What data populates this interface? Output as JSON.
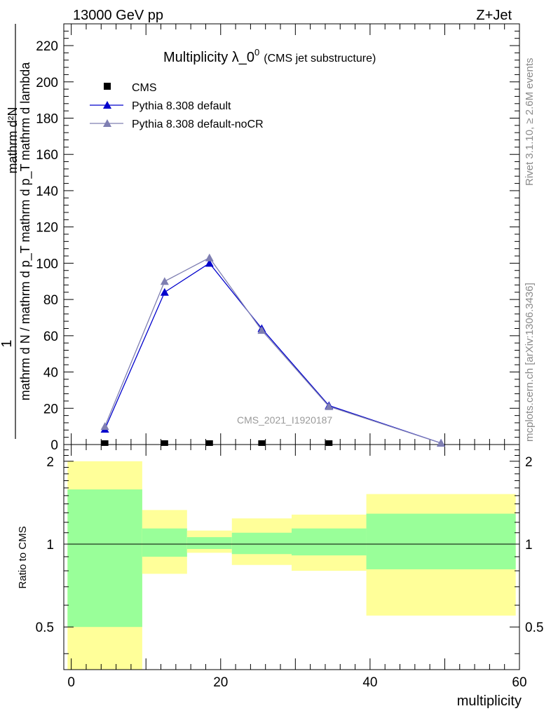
{
  "header": {
    "left": "13000 GeV pp",
    "right": "Z+Jet"
  },
  "side_labels": {
    "rivet": "Rivet 3.1.10, ≥ 2.6M events",
    "mcplots": "mcplots.cern.ch [arXiv:1306.3436]"
  },
  "watermark": "CMS_2021_I1920187",
  "chart_data": [
    {
      "type": "line",
      "panel": "main",
      "title_main": "Multiplicity λ_0",
      "title_sup": "0",
      "title_sub": "(CMS jet substructure)",
      "ylabel_numerator": "1",
      "ylabel_denominator": "mathrm d N / mathrm d p_T mathrm d p_T mathrm d lambda",
      "ylabel_fraction_top": "mathrm d²N",
      "xlim": [
        -1,
        60
      ],
      "ylim": [
        0,
        232
      ],
      "y_ticks": [
        0,
        20,
        40,
        60,
        80,
        100,
        120,
        140,
        160,
        180,
        200,
        220
      ],
      "legend_position": "top-left",
      "series": [
        {
          "name": "CMS",
          "marker": "square",
          "color": "#000000",
          "x": [
            4.5,
            12.5,
            18.5,
            25.5,
            34.5,
            49.5
          ],
          "y": [
            0.8,
            0.8,
            0.8,
            0.8,
            0.8,
            0.0
          ]
        },
        {
          "name": "Pythia 8.308 default",
          "marker": "triangle",
          "color": "#0000cc",
          "x": [
            4.5,
            12.5,
            18.5,
            25.5,
            34.5,
            49.5
          ],
          "y": [
            8.5,
            84,
            100,
            64,
            21.5,
            0.8
          ]
        },
        {
          "name": "Pythia 8.308 default-noCR",
          "marker": "triangle",
          "color": "#7f7fb2",
          "x": [
            4.5,
            12.5,
            18.5,
            25.5,
            34.5,
            49.5
          ],
          "y": [
            10,
            90,
            103,
            63,
            21,
            0.8
          ]
        }
      ]
    },
    {
      "type": "area",
      "panel": "ratio",
      "ylabel": "Ratio to CMS",
      "scale": "log",
      "ylim": [
        0.35,
        2.3
      ],
      "y_ticks": [
        0.5,
        1,
        2
      ],
      "x_ticks": [
        0,
        20,
        40,
        60
      ],
      "xlabel": "multiplicity",
      "reference_line": 1,
      "bands": [
        {
          "x": [
            -0.5,
            9.5
          ],
          "yellow": [
            0.35,
            2.0
          ],
          "green": [
            0.5,
            1.58
          ]
        },
        {
          "x": [
            9.5,
            15.5
          ],
          "yellow": [
            0.78,
            1.33
          ],
          "green": [
            0.9,
            1.14
          ]
        },
        {
          "x": [
            15.5,
            21.5
          ],
          "yellow": [
            0.93,
            1.12
          ],
          "green": [
            0.96,
            1.06
          ]
        },
        {
          "x": [
            21.5,
            29.5
          ],
          "yellow": [
            0.84,
            1.24
          ],
          "green": [
            0.92,
            1.1
          ]
        },
        {
          "x": [
            29.5,
            39.5
          ],
          "yellow": [
            0.8,
            1.28
          ],
          "green": [
            0.91,
            1.14
          ]
        },
        {
          "x": [
            39.5,
            59.5
          ],
          "yellow": [
            0.55,
            1.52
          ],
          "green": [
            0.81,
            1.29
          ]
        }
      ],
      "colors": {
        "yellow": "#ffff99",
        "green": "#99ff99"
      }
    }
  ]
}
